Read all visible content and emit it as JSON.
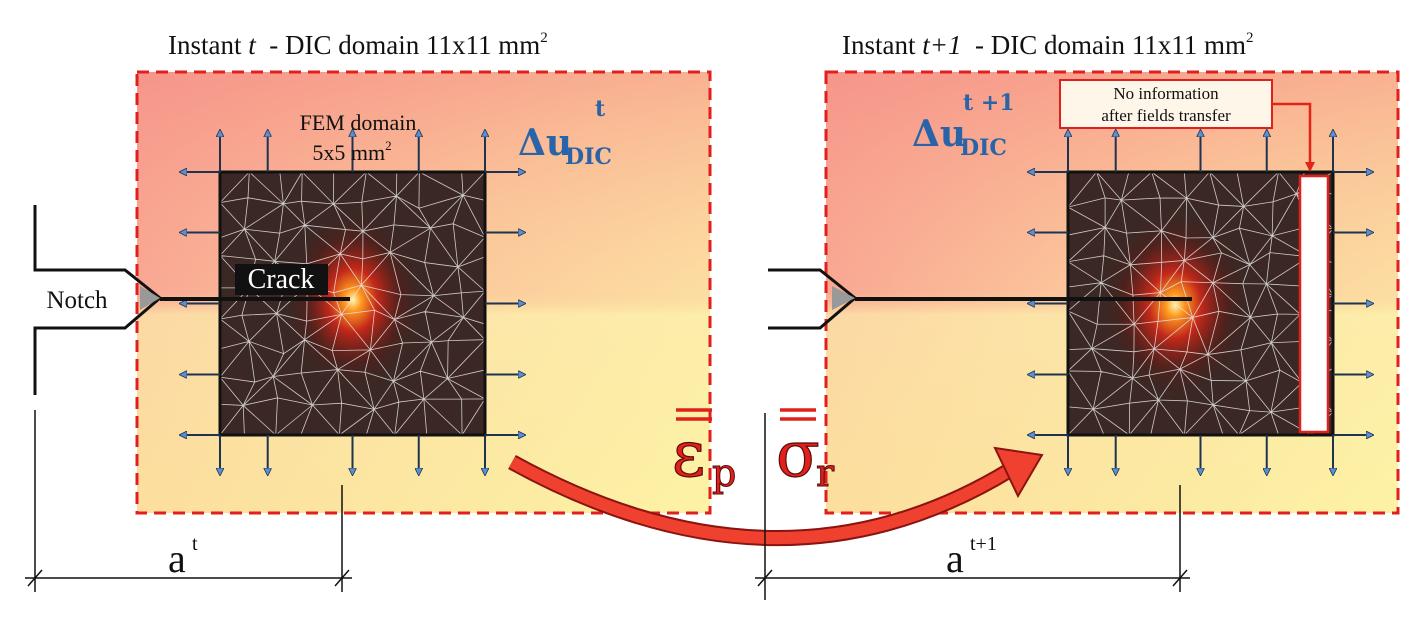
{
  "panels": [
    {
      "title": {
        "prefix": "Instant ",
        "instant": "t",
        "suffix": "  - DIC domain 11x11 mm",
        "exponent": "2"
      },
      "displacement": {
        "symbol": "Δu",
        "subscript": "DIC",
        "superscript": "t"
      },
      "fem_domain": {
        "label": "FEM domain",
        "size": "5x5 mm",
        "exponent": "2"
      },
      "crack_label": "Crack",
      "notch_label": "Notch",
      "crack_length": {
        "symbol": "a",
        "superscript": "t"
      }
    },
    {
      "title": {
        "prefix": "Instant ",
        "instant": "t+1",
        "suffix": "  - DIC domain 11x11 mm",
        "exponent": "2"
      },
      "displacement": {
        "symbol": "Δu",
        "subscript": "DIC",
        "superscript": "t +1"
      },
      "note": [
        "No information",
        "after fields transfer"
      ],
      "crack_length": {
        "symbol": "a",
        "superscript": "t+1"
      }
    }
  ],
  "transfer": {
    "strain": {
      "symbol": "ε",
      "subscript": "p"
    },
    "stress": {
      "symbol": "σ",
      "subscript": "r"
    }
  }
}
